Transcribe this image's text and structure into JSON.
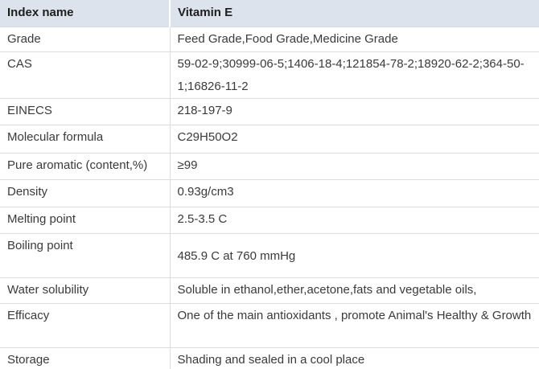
{
  "table": {
    "header": {
      "col1": "Index name",
      "col2": "Vitamin E"
    },
    "rows": [
      {
        "label": "Grade",
        "value": "Feed Grade,Food Grade,Medicine Grade"
      },
      {
        "label": "CAS",
        "value": "59-02-9;30999-06-5;1406-18-4;121854-78-2;18920-62-2;364-50-1;16826-11-2"
      },
      {
        "label": "EINECS",
        "value": "218-197-9"
      },
      {
        "label": "Molecular formula",
        "value": "C29H50O2"
      },
      {
        "label": "Pure aromatic (content,%)",
        "value": "≥99"
      },
      {
        "label": "Density",
        "value": "0.93g/cm3"
      },
      {
        "label": "Melting point",
        "value": "2.5-3.5 C"
      },
      {
        "label": "Boiling point",
        "value": "485.9 C at 760 mmHg"
      },
      {
        "label": "Water solubility",
        "value": "Soluble in ethanol,ether,acetone,fats and vegetable oils,"
      },
      {
        "label": "Efficacy",
        "value": "One of the main antioxidants , promote Animal's Healthy & Growth"
      },
      {
        "label": "Storage",
        "value": "Shading and sealed in a cool place"
      }
    ]
  },
  "colors": {
    "header_bg": "#dde3ed",
    "border": "#d9dce1",
    "body_text": "#3a3a3a",
    "header_text": "#1e1e1e",
    "row_bg": "#ffffff"
  }
}
